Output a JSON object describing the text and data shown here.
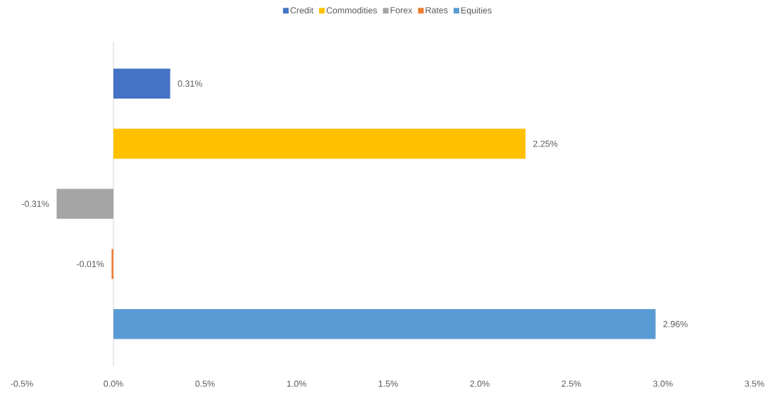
{
  "chart_data": {
    "type": "bar",
    "orientation": "horizontal",
    "categories": [
      null,
      null,
      null,
      null,
      null
    ],
    "series": [
      {
        "name": "Credit",
        "color": "#4472c4",
        "values": [
          0.31,
          null,
          null,
          null,
          null
        ],
        "value_labels": [
          "0.31%",
          null,
          null,
          null,
          null
        ]
      },
      {
        "name": "Commodities",
        "color": "#ffc000",
        "values": [
          null,
          2.25,
          null,
          null,
          null
        ],
        "value_labels": [
          null,
          "2.25%",
          null,
          null,
          null
        ]
      },
      {
        "name": "Forex",
        "color": "#a5a5a5",
        "values": [
          null,
          null,
          -0.31,
          null,
          null
        ],
        "value_labels": [
          null,
          null,
          "-0.31%",
          null,
          null
        ]
      },
      {
        "name": "Rates",
        "color": "#ed7d31",
        "values": [
          null,
          null,
          null,
          -0.01,
          null
        ],
        "value_labels": [
          null,
          null,
          null,
          "-0.01%",
          null
        ]
      },
      {
        "name": "Equities",
        "color": "#5b9bd5",
        "values": [
          null,
          null,
          null,
          null,
          2.96
        ],
        "value_labels": [
          null,
          null,
          null,
          null,
          "2.96%"
        ]
      }
    ],
    "xlim": [
      -0.5,
      3.5
    ],
    "xticks": [
      {
        "value": -0.5,
        "label": "-0.5%"
      },
      {
        "value": 0,
        "label": "0.0%"
      },
      {
        "value": 0.5,
        "label": "0.5%"
      },
      {
        "value": 1,
        "label": "1.0%"
      },
      {
        "value": 1.5,
        "label": "1.5%"
      },
      {
        "value": 2,
        "label": "2.0%"
      },
      {
        "value": 2.5,
        "label": "2.5%"
      },
      {
        "value": 3,
        "label": "3.0%"
      },
      {
        "value": 3.5,
        "label": "3.5%"
      }
    ],
    "legend": "top"
  }
}
